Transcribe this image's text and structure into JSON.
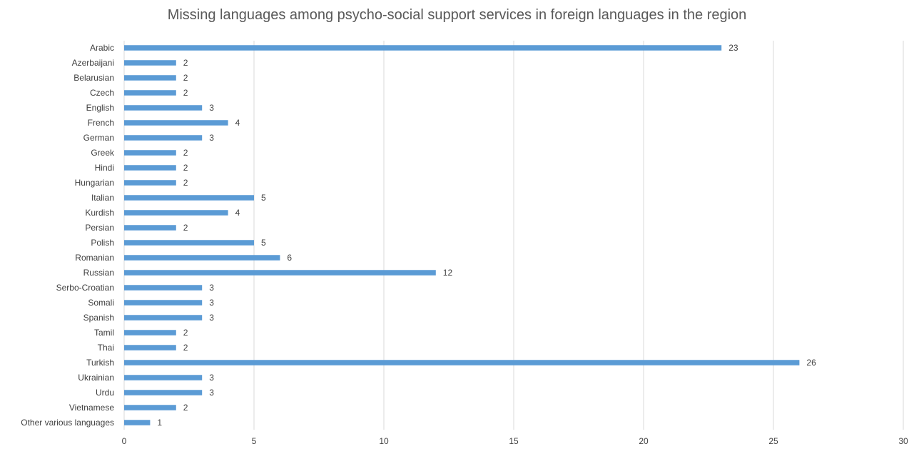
{
  "chart_data": {
    "type": "bar",
    "orientation": "horizontal",
    "title": "Missing languages among psycho-social support services in foreign languages in the region",
    "categories": [
      "Arabic",
      "Azerbaijani",
      "Belarusian",
      "Czech",
      "English",
      "French",
      "German",
      "Greek",
      "Hindi",
      "Hungarian",
      "Italian",
      "Kurdish",
      "Persian",
      "Polish",
      "Romanian",
      "Russian",
      "Serbo-Croatian",
      "Somali",
      "Spanish",
      "Tamil",
      "Thai",
      "Turkish",
      "Ukrainian",
      "Urdu",
      "Vietnamese",
      "Other various languages"
    ],
    "values": [
      23,
      2,
      2,
      2,
      3,
      4,
      3,
      2,
      2,
      2,
      5,
      4,
      2,
      5,
      6,
      12,
      3,
      3,
      3,
      2,
      2,
      26,
      3,
      3,
      2,
      1
    ],
    "xlim": [
      0,
      30
    ],
    "xticks": [
      0,
      5,
      10,
      15,
      20,
      25,
      30
    ],
    "grid": "vertical",
    "data_labels": true,
    "bar_color": "#5B9BD5",
    "gridline_color": "#D9D9D9",
    "text_color": "#404040"
  }
}
